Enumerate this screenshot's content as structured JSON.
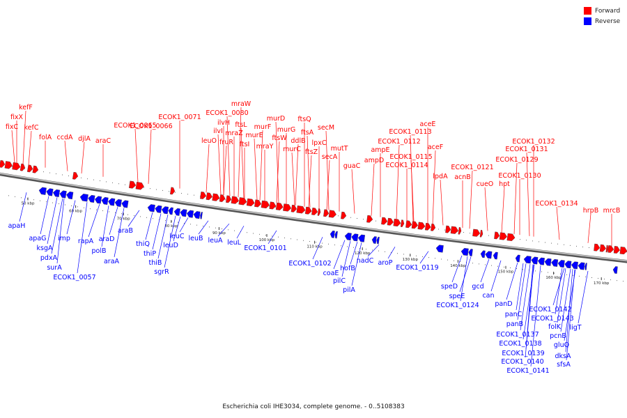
{
  "legend": {
    "forward": {
      "label": "Forward",
      "color": "#ff0000"
    },
    "reverse": {
      "label": "Reverse",
      "color": "#0000ff"
    }
  },
  "caption": "Escherichia coli IHE3034, complete genome. - 0..5108383",
  "ticks": [
    "50 kbp",
    "60 kbp",
    "70 kbp",
    "80 kbp",
    "90 kbp",
    "100 kbp",
    "110 kbp",
    "120 kbp",
    "130 kbp",
    "140 kbp",
    "150 kbp",
    "160 kbp",
    "170 kbp"
  ],
  "forward_labels": [
    "kefF",
    "fixX",
    "fixC",
    "kefC",
    "folA",
    "ccdA",
    "djlA",
    "araC",
    "ECOK1_0065",
    "ECOK1_0066",
    "ECOK1_0071",
    "ECOK1_0080",
    "mraW",
    "ilvH",
    "ilvI",
    "fruR",
    "mraZ",
    "ftsL",
    "leuO",
    "ftsI",
    "murE",
    "murF",
    "mraY",
    "murD",
    "ftsW",
    "murG",
    "murC",
    "ddlB",
    "ftsQ",
    "ftsA",
    "ftsZ",
    "lpxC",
    "secM",
    "secA",
    "mutT",
    "guaC",
    "ampD",
    "ampE",
    "ECOK1_0113",
    "ECOK1_0112",
    "aceE",
    "ECOK1_0115",
    "aceF",
    "ECOK1_0114",
    "lpdA",
    "ECOK1_0121",
    "acnB",
    "cueO",
    "hpt",
    "ECOK1_0132",
    "ECOK1_0131",
    "ECOK1_0129",
    "ECOK1_0130",
    "ECOK1_0134",
    "hrpB",
    "mrcB"
  ],
  "reverse_labels": [
    "apaH",
    "apaG",
    "ksgA",
    "pdxA",
    "surA",
    "imp",
    "ECOK1_0057",
    "rapA",
    "polB",
    "araD",
    "araA",
    "araB",
    "thiQ",
    "thiP",
    "thiB",
    "sgrR",
    "leuD",
    "leuC",
    "leuB",
    "leuA",
    "leuL",
    "ECOK1_0101",
    "ECOK1_0102",
    "coaE",
    "hofB",
    "pilC",
    "pilA",
    "nadC",
    "aroP",
    "ECOK1_0119",
    "speD",
    "speE",
    "ECOK1_0124",
    "gcd",
    "can",
    "panD",
    "panC",
    "panB",
    "ECOK1_0137",
    "ECOK1_0138",
    "ECOK1_0139",
    "ECOK1_0140",
    "ECOK1_0141",
    "ECOK1_0142",
    "ECOK1_0143",
    "folK",
    "pcnB",
    "gluQ",
    "dksA",
    "sfsA",
    "ligT"
  ]
}
